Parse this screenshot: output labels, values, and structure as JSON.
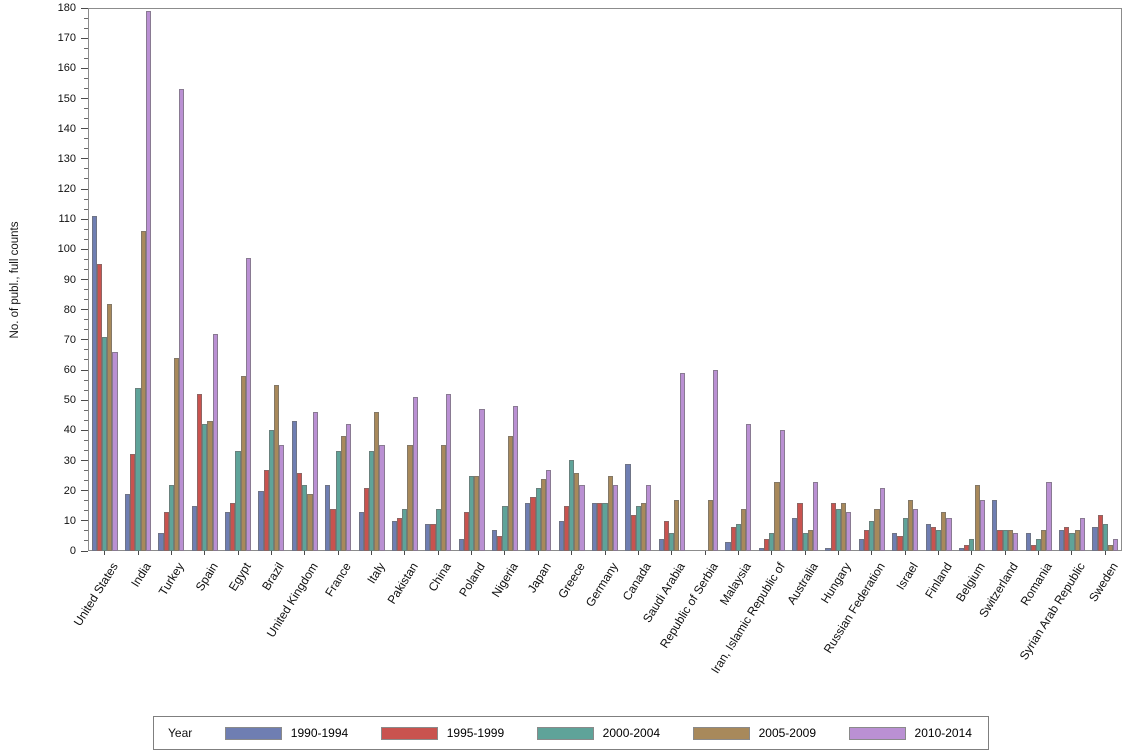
{
  "chart_data": {
    "type": "bar",
    "title": "",
    "xlabel": "",
    "ylabel": "No. of publ., full counts",
    "legend_title": "Year",
    "legend_position": "bottom",
    "grid": false,
    "ylim": [
      0,
      180
    ],
    "yticks": [
      0,
      10,
      20,
      30,
      40,
      50,
      60,
      70,
      80,
      90,
      100,
      110,
      120,
      130,
      140,
      150,
      160,
      170,
      180
    ],
    "categories": [
      "United States",
      "India",
      "Turkey",
      "Spain",
      "Egypt",
      "Brazil",
      "United Kingdom",
      "France",
      "Italy",
      "Pakistan",
      "China",
      "Poland",
      "Nigeria",
      "Japan",
      "Greece",
      "Germany",
      "Canada",
      "Saudi Arabia",
      "Republic of Serbia",
      "Malaysia",
      "Iran, Islamic Republic of",
      "Australia",
      "Hungary",
      "Russian Federation",
      "Israel",
      "Finland",
      "Belgium",
      "Switzerland",
      "Romania",
      "Syrian Arab Republic",
      "Sweden"
    ],
    "series": [
      {
        "name": "1990-1994",
        "color": "#6F7EB2",
        "values": [
          111,
          19,
          6,
          15,
          13,
          20,
          43,
          22,
          13,
          10,
          9,
          4,
          7,
          16,
          10,
          16,
          29,
          4,
          0,
          3,
          1,
          11,
          1,
          4,
          6,
          9,
          1,
          17,
          6,
          7,
          8
        ]
      },
      {
        "name": "1995-1999",
        "color": "#C9534F",
        "values": [
          95,
          32,
          13,
          52,
          16,
          27,
          26,
          14,
          21,
          11,
          9,
          13,
          5,
          18,
          15,
          16,
          12,
          10,
          0,
          8,
          4,
          16,
          16,
          7,
          5,
          8,
          2,
          7,
          2,
          8,
          12
        ]
      },
      {
        "name": "2000-2004",
        "color": "#5FA399",
        "values": [
          71,
          54,
          22,
          42,
          33,
          40,
          22,
          33,
          33,
          14,
          14,
          25,
          15,
          21,
          30,
          16,
          15,
          6,
          0,
          9,
          6,
          6,
          14,
          10,
          11,
          7,
          4,
          7,
          4,
          6,
          9
        ]
      },
      {
        "name": "2005-2009",
        "color": "#A8895B",
        "values": [
          82,
          106,
          64,
          43,
          58,
          55,
          19,
          38,
          46,
          35,
          35,
          25,
          38,
          24,
          26,
          25,
          16,
          17,
          17,
          14,
          23,
          7,
          16,
          14,
          17,
          13,
          22,
          7,
          7,
          7,
          2
        ]
      },
      {
        "name": "2010-2014",
        "color": "#BA90D3",
        "values": [
          66,
          179,
          153,
          72,
          97,
          35,
          46,
          42,
          35,
          51,
          52,
          47,
          48,
          27,
          22,
          22,
          22,
          59,
          60,
          42,
          40,
          23,
          13,
          21,
          14,
          11,
          17,
          6,
          23,
          11,
          4
        ]
      }
    ],
    "axis_color": "#8c8c8c"
  }
}
